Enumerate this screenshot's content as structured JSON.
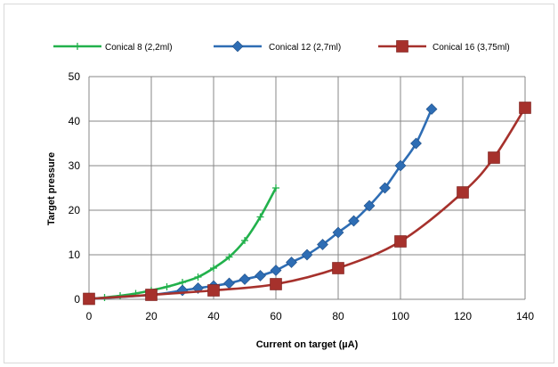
{
  "chart_data": {
    "type": "line",
    "title": "",
    "xlabel": "Current on target (µA)",
    "ylabel": "Target pressure",
    "xlim": [
      0,
      140
    ],
    "ylim": [
      0,
      50
    ],
    "x_ticks": [
      0,
      20,
      40,
      60,
      80,
      100,
      120,
      140
    ],
    "y_ticks": [
      0,
      10,
      20,
      30,
      40,
      50
    ],
    "grid": true,
    "legend_position": "top",
    "series": [
      {
        "name": "Conical 8 (2,2ml)",
        "color": "#22b14c",
        "marker": "plus",
        "x": [
          0,
          5,
          10,
          15,
          20,
          25,
          30,
          35,
          40,
          45,
          50,
          55,
          60
        ],
        "y": [
          0.1,
          0.4,
          0.8,
          1.3,
          2.0,
          2.8,
          3.8,
          5.0,
          7.0,
          9.5,
          13.2,
          18.5,
          25.0
        ]
      },
      {
        "name": "Conical 12 (2,7ml)",
        "color": "#2e6db4",
        "marker": "diamond",
        "x": [
          0,
          20,
          30,
          35,
          40,
          45,
          50,
          55,
          60,
          65,
          70,
          75,
          80,
          85,
          90,
          95,
          100,
          105,
          110
        ],
        "y": [
          0.1,
          1.0,
          2.0,
          2.5,
          3.0,
          3.6,
          4.5,
          5.3,
          6.5,
          8.3,
          10.0,
          12.3,
          15.0,
          17.6,
          21.0,
          25.0,
          30.0,
          35.0,
          42.7
        ]
      },
      {
        "name": "Conical 16 (3,75ml)",
        "color": "#a6312c",
        "marker": "square",
        "x": [
          0,
          20,
          40,
          60,
          80,
          100,
          120,
          130,
          140
        ],
        "y": [
          0.1,
          1.0,
          2.0,
          3.4,
          7.0,
          13.0,
          24.0,
          31.8,
          43.0
        ]
      }
    ]
  }
}
